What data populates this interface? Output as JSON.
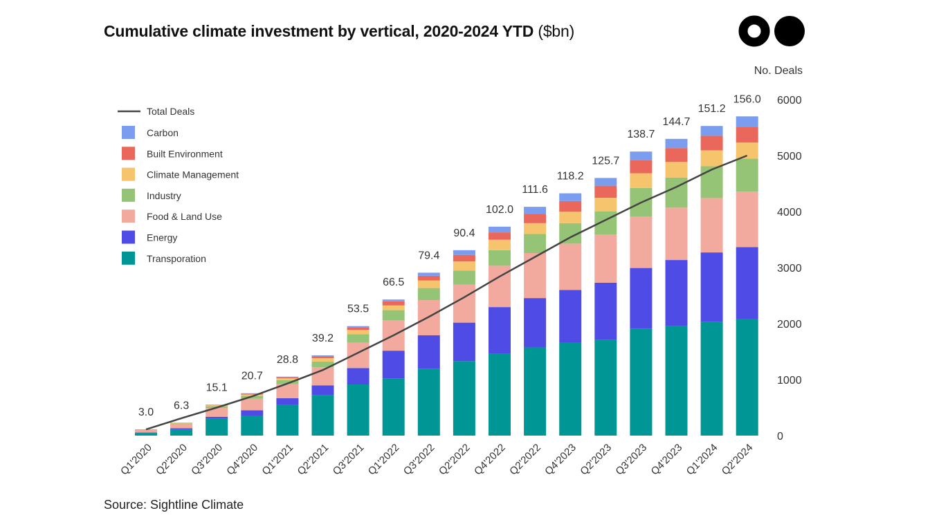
{
  "title": {
    "main": "Cumulative climate investment by vertical, 2020-2024 YTD",
    "unit": "($bn)"
  },
  "source": "Source: Sightline Climate",
  "logo": "Medium-style two-circle logo",
  "chart_data": {
    "type": "bar",
    "stacked": true,
    "title": "Cumulative climate investment by vertical, 2020-2024 YTD ($bn)",
    "xlabel": "",
    "ylabel": "",
    "y2label": "No. Deals",
    "y2lim": [
      0,
      6000
    ],
    "y2ticks": [
      0,
      1000,
      2000,
      3000,
      4000,
      5000,
      6000
    ],
    "grid": false,
    "legend_position": "top-left",
    "categories": [
      "Q1'2020",
      "Q2'2020",
      "Q3'2020",
      "Q4'2020",
      "Q1'2021",
      "Q2'2021",
      "Q3'2021",
      "Q1'2022",
      "Q3'2022",
      "Q2'2022",
      "Q4'2022",
      "Q2'2022",
      "Q4'2023",
      "Q2'2023",
      "Q3'2023",
      "Q4'2023",
      "Q1'2024",
      "Q2'2024"
    ],
    "totals": [
      "3.0",
      "6.3",
      "15.1",
      "20.7",
      "28.8",
      "39.2",
      "53.5",
      "66.5",
      "79.4",
      "90.4",
      "102.0",
      "111.6",
      "118.2",
      "125.7",
      "138.7",
      "144.7",
      "151.2",
      "156.0"
    ],
    "series": [
      {
        "name": "Transporation",
        "color": "#009696",
        "values": [
          1.3,
          3.0,
          8.2,
          9.8,
          15.0,
          19.7,
          25.0,
          28.0,
          32.7,
          36.4,
          40.2,
          43.1,
          45.3,
          46.7,
          52.3,
          53.7,
          55.5,
          57.1
        ]
      },
      {
        "name": "Energy",
        "color": "#4F4CE6",
        "values": [
          0.2,
          0.6,
          1.0,
          2.6,
          3.3,
          4.8,
          8.0,
          13.5,
          16.3,
          18.8,
          22.6,
          24.1,
          25.9,
          28.0,
          29.6,
          32.1,
          34.0,
          35.0
        ]
      },
      {
        "name": "Food & Land Use",
        "color": "#F2AA9E",
        "values": [
          1.4,
          2.0,
          4.3,
          5.6,
          6.8,
          8.9,
          12.4,
          14.8,
          17.2,
          18.6,
          20.2,
          22.0,
          22.6,
          23.5,
          25.1,
          25.6,
          26.6,
          27.1
        ]
      },
      {
        "name": "Industry",
        "color": "#96C476",
        "values": [
          0.05,
          0.3,
          0.9,
          1.4,
          2.0,
          2.8,
          4.2,
          5.0,
          5.9,
          6.8,
          7.6,
          9.3,
          10.0,
          11.4,
          14.0,
          14.7,
          15.5,
          16.1
        ]
      },
      {
        "name": "Climate Management",
        "color": "#F5C46C",
        "values": [
          0.03,
          0.2,
          0.4,
          0.7,
          0.9,
          1.6,
          2.0,
          2.3,
          3.7,
          4.5,
          5.1,
          5.3,
          5.6,
          6.6,
          7.2,
          7.6,
          7.8,
          7.9
        ]
      },
      {
        "name": "Built Environment",
        "color": "#E9685B",
        "values": [
          0.01,
          0.1,
          0.2,
          0.4,
          0.5,
          0.9,
          1.3,
          2.0,
          2.3,
          3.2,
          3.6,
          4.5,
          5.2,
          5.9,
          6.4,
          6.8,
          7.1,
          7.7
        ]
      },
      {
        "name": "Carbon",
        "color": "#7B9DF0",
        "values": [
          0.01,
          0.1,
          0.1,
          0.2,
          0.3,
          0.5,
          0.6,
          0.9,
          1.5,
          2.3,
          2.8,
          3.5,
          3.8,
          3.8,
          4.2,
          4.5,
          4.8,
          5.1
        ]
      }
    ],
    "line": {
      "name": "Total Deals",
      "color": "#444444",
      "axis": "right",
      "values": [
        110,
        310,
        500,
        700,
        930,
        1170,
        1480,
        1790,
        2120,
        2470,
        2840,
        3190,
        3540,
        3850,
        4160,
        4440,
        4750,
        5000
      ]
    }
  }
}
